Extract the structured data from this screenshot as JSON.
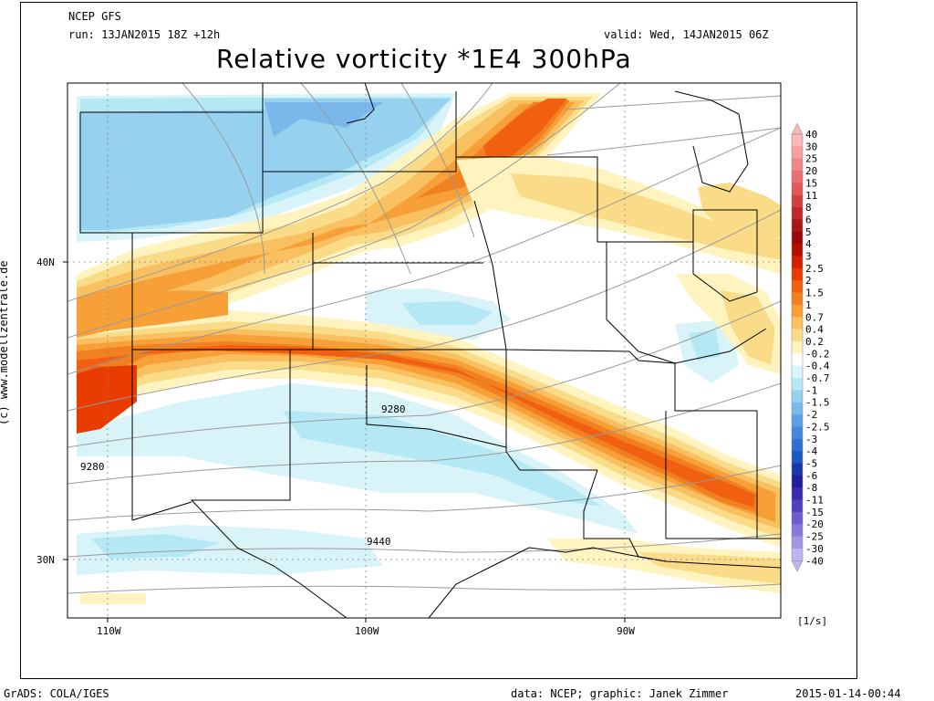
{
  "header": {
    "model": "NCEP GFS",
    "run": "run: 13JAN2015 18Z +12h",
    "valid": "valid: Wed, 14JAN2015 06Z",
    "title": "Relative vorticity *1E4 300hPa"
  },
  "side_credit": "(c) www.modellzentrale.de",
  "lat_labels": [
    "40N",
    "30N"
  ],
  "lon_labels": [
    "110W",
    "100W",
    "90W"
  ],
  "contour_labels": [
    "9280",
    "9280",
    "9440"
  ],
  "colorbar": {
    "labels": [
      "40",
      "30",
      "25",
      "20",
      "15",
      "11",
      "8",
      "6",
      "5",
      "4",
      "3",
      "2.5",
      "2",
      "1.5",
      "1",
      "0.7",
      "0.4",
      "0.2",
      "-0.2",
      "-0.4",
      "-0.7",
      "-1",
      "-1.5",
      "-2",
      "-2.5",
      "-3",
      "-4",
      "-5",
      "-6",
      "-8",
      "-11",
      "-15",
      "-20",
      "-25",
      "-30",
      "-40"
    ],
    "colors": [
      "#f8b8b8",
      "#f4a0a0",
      "#ee8888",
      "#e87070",
      "#e05858",
      "#d04040",
      "#c02828",
      "#a81818",
      "#980808",
      "#b01000",
      "#d02000",
      "#e83c00",
      "#f06010",
      "#f08020",
      "#f8a038",
      "#f8c060",
      "#fadc88",
      "#fff4c0",
      "#ffffff",
      "#d8f4f8",
      "#b4e8f4",
      "#96d2f0",
      "#7ab8ec",
      "#5ea0e6",
      "#4888dc",
      "#3070d0",
      "#1c58c0",
      "#1838a8",
      "#20209a",
      "#3a2ab0",
      "#5040c4",
      "#6c5cd0",
      "#8878dc",
      "#a494e6",
      "#c0b4f0"
    ],
    "unit": "[1/s]"
  },
  "footer": {
    "left": "GrADS: COLA/IGES",
    "center": "data: NCEP; graphic: Janek Zimmer",
    "right": "2015-01-14-00:44"
  }
}
